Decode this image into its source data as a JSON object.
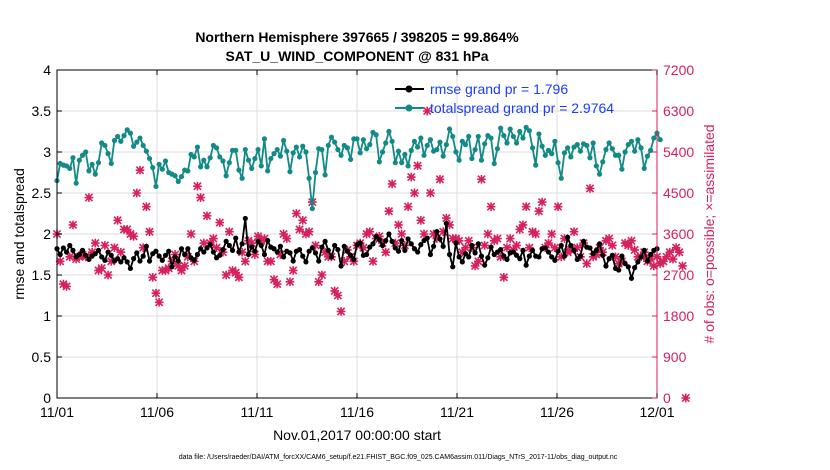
{
  "chart_data": {
    "type": "line",
    "title": "Northern Hemisphere 397665 / 398205 = 99.864%",
    "subtitle": "SAT_U_WIND_COMPONENT @ 831 hPa",
    "xlabel": "Nov.01,2017 00:00:00 start",
    "ylabel_left": "rmse and totalspread",
    "ylabel_right": "# of obs: o=possible; ×=assimilated",
    "footnote": "data file: /Users/raeder/DAI/ATM_forcXX/CAM6_setup/f.e21.FHIST_BGC.f09_025.CAM6assim.011/Diags_NTrS_2017-11/obs_diag_output.nc",
    "x_ticks": [
      "11/01",
      "11/06",
      "11/11",
      "11/16",
      "11/21",
      "11/26",
      "12/01"
    ],
    "xlim": [
      0,
      30
    ],
    "ylim_left": [
      0,
      4
    ],
    "yticks_left": [
      "0",
      "0.5",
      "1",
      "1.5",
      "2",
      "2.5",
      "3",
      "3.5",
      "4"
    ],
    "ylim_right": [
      0,
      7200
    ],
    "yticks_right": [
      "0",
      "900",
      "1800",
      "2700",
      "3600",
      "4500",
      "5400",
      "6300",
      "7200"
    ],
    "grid": true,
    "legend_position": "top-right",
    "colors": {
      "rmse": "#000000",
      "spread": "#138a86",
      "obs": "#d6215c",
      "right_axis": "#d6215c",
      "legend_text": "#1a3cff"
    },
    "series": [
      {
        "name": "rmse grand pr = 1.796",
        "axis": "left",
        "values": [
          1.82,
          1.75,
          1.83,
          1.78,
          1.86,
          1.8,
          1.72,
          1.75,
          1.8,
          1.74,
          1.69,
          1.73,
          1.76,
          1.8,
          1.72,
          1.68,
          1.78,
          1.74,
          1.67,
          1.7,
          1.66,
          1.71,
          1.66,
          1.58,
          1.7,
          1.77,
          1.67,
          1.73,
          1.85,
          1.67,
          1.76,
          1.79,
          1.73,
          1.68,
          1.74,
          1.79,
          1.6,
          1.72,
          1.67,
          1.82,
          1.75,
          1.82,
          1.71,
          1.68,
          1.75,
          1.82,
          1.78,
          1.83,
          1.87,
          1.78,
          1.71,
          1.74,
          1.81,
          1.91,
          1.86,
          1.8,
          1.95,
          1.78,
          1.88,
          2.19,
          1.75,
          1.84,
          1.79,
          1.91,
          1.86,
          1.75,
          1.92,
          1.84,
          1.82,
          1.78,
          1.85,
          1.72,
          1.79,
          1.77,
          1.67,
          1.79,
          1.81,
          1.73,
          1.66,
          1.79,
          1.83,
          1.77,
          1.67,
          1.84,
          1.91,
          1.8,
          1.72,
          1.86,
          1.81,
          1.61,
          1.85,
          1.79,
          1.74,
          1.69,
          1.87,
          1.89,
          1.74,
          1.75,
          1.84,
          1.88,
          1.97,
          1.93,
          1.86,
          1.92,
          2.0,
          1.91,
          1.83,
          1.79,
          1.92,
          1.8,
          1.94,
          1.88,
          1.82,
          1.78,
          1.87,
          1.92,
          1.95,
          1.75,
          1.85,
          2.03,
          1.94,
          1.85,
          2.13,
          1.75,
          1.6,
          1.89,
          1.72,
          1.66,
          1.76,
          1.72,
          1.86,
          1.77,
          1.88,
          1.73,
          1.62,
          1.71,
          1.84,
          1.75,
          1.78,
          1.81,
          1.73,
          1.69,
          1.77,
          1.78,
          1.74,
          1.7,
          1.8,
          1.62,
          1.73,
          1.8,
          1.73,
          1.72,
          1.82,
          1.83,
          1.78,
          1.72,
          1.68,
          1.79,
          1.86,
          1.73,
          1.96,
          1.86,
          1.8,
          1.69,
          1.73,
          1.91,
          1.84,
          1.83,
          1.76,
          1.8,
          1.88,
          1.74,
          1.61,
          1.7,
          1.74,
          1.58,
          1.56,
          1.73,
          1.64,
          1.6,
          1.46,
          1.59,
          1.66,
          1.72,
          1.8,
          1.67,
          1.75,
          1.8,
          1.82
        ]
      },
      {
        "name": "totalspread grand pr = 2.9764",
        "axis": "left",
        "values": [
          2.65,
          2.86,
          2.84,
          2.83,
          2.8,
          2.93,
          2.62,
          2.9,
          2.96,
          3.0,
          2.77,
          2.85,
          2.73,
          2.87,
          3.11,
          3.08,
          2.98,
          2.86,
          3.14,
          3.19,
          3.13,
          3.2,
          3.27,
          3.23,
          3.07,
          3.12,
          3.17,
          3.08,
          3.01,
          2.92,
          2.81,
          2.58,
          2.85,
          2.79,
          2.89,
          2.75,
          2.73,
          2.71,
          2.64,
          2.7,
          2.78,
          2.77,
          2.97,
          2.94,
          3.06,
          2.82,
          2.9,
          2.82,
          2.93,
          3.08,
          3.05,
          2.94,
          2.89,
          2.71,
          2.87,
          3.02,
          3.02,
          2.78,
          2.68,
          3.03,
          2.9,
          2.8,
          2.92,
          3.03,
          2.83,
          3.16,
          2.77,
          2.92,
          2.98,
          3.03,
          2.95,
          3.14,
          3.01,
          2.76,
          2.99,
          3.06,
          2.94,
          3.07,
          3.0,
          2.68,
          2.31,
          2.75,
          3.04,
          3.03,
          2.72,
          3.08,
          3.18,
          3.12,
          3.03,
          2.96,
          3.08,
          3.05,
          2.91,
          3.16,
          3.16,
          2.99,
          3.15,
          3.04,
          3.09,
          3.24,
          3.21,
          2.88,
          3.0,
          3.11,
          3.25,
          3.13,
          2.87,
          3.01,
          2.87,
          2.97,
          2.83,
          3.02,
          3.13,
          3.06,
          3.17,
          2.96,
          3.08,
          3.15,
          3.01,
          3.03,
          3.12,
          2.95,
          3.09,
          3.28,
          3.19,
          3.0,
          2.9,
          3.13,
          3.09,
          3.19,
          2.92,
          3.03,
          3.19,
          2.9,
          3.1,
          3.2,
          3.17,
          2.86,
          3.04,
          3.29,
          3.2,
          3.11,
          3.28,
          3.19,
          3.11,
          3.25,
          3.17,
          3.3,
          3.26,
          3.05,
          2.84,
          3.22,
          3.07,
          2.96,
          3.02,
          2.98,
          3.13,
          2.87,
          2.68,
          2.99,
          3.05,
          2.94,
          3.06,
          3.09,
          3.01,
          3.1,
          3.08,
          2.93,
          3.11,
          2.83,
          2.73,
          2.88,
          3.03,
          3.11,
          3.04,
          2.96,
          2.96,
          2.79,
          3.0,
          3.09,
          3.13,
          3.01,
          3.15,
          3.05,
          2.8,
          2.95,
          3.02,
          3.17,
          3.23,
          3.15
        ]
      },
      {
        "name": "assimilated",
        "axis": "right",
        "values": [
          3600,
          3000,
          2500,
          2450,
          3100,
          3800,
          3050,
          3100,
          3150,
          3100,
          4400,
          3200,
          3400,
          2800,
          2850,
          3350,
          2700,
          3000,
          3300,
          3900,
          3200,
          3700,
          3700,
          3600,
          3550,
          4500,
          5000,
          3300,
          4200,
          3650,
          2650,
          2300,
          2100,
          2800,
          2800,
          2850,
          3000,
          3150,
          2900,
          2800,
          2900,
          3100,
          3600,
          3000,
          4650,
          4400,
          3400,
          4000,
          3400,
          3500,
          3300,
          3850,
          3200,
          2700,
          3650,
          2800,
          2750,
          2650,
          3200,
          3000,
          3450,
          3400,
          3150,
          3550,
          3450,
          3500,
          3000,
          3000,
          2600,
          2500,
          3150,
          3600,
          3500,
          2550,
          2800,
          4050,
          3700,
          3900,
          3600,
          3650,
          4300,
          3350,
          2550,
          2700,
          3200,
          3100,
          3100,
          2350,
          2250,
          1900,
          3000,
          3250,
          3100,
          3000,
          3350,
          3400,
          3300,
          3600,
          3650,
          3000,
          3500,
          3550,
          3400,
          3200,
          4100,
          4700,
          3400,
          3800,
          3600,
          3350,
          4200,
          4850,
          4500,
          5100,
          3900,
          3600,
          6300,
          4500,
          3600,
          3500,
          4800,
          3650,
          3950,
          3800,
          3500,
          3500,
          3450,
          3200,
          3300,
          3450,
          3300,
          2900,
          3000,
          4800,
          3350,
          3600,
          4200,
          3450,
          3500,
          3100,
          2650,
          3300,
          3500,
          3250,
          3350,
          3700,
          3800,
          4200,
          3300,
          3650,
          3600,
          4100,
          4300,
          3300,
          3400,
          3600,
          3300,
          4200,
          3100,
          3500,
          3200,
          3250,
          3650,
          3300,
          3100,
          3400,
          2950,
          4600,
          3100,
          3150,
          3300,
          3200,
          3450,
          3500,
          3350,
          3100,
          2950,
          3000,
          3400,
          3350,
          3450,
          3250,
          3100,
          3100,
          3200,
          3000,
          3050,
          2900,
          3100,
          2950,
          3000,
          3100,
          3200,
          3050,
          3300,
          3200,
          2900,
          0
        ]
      }
    ]
  }
}
